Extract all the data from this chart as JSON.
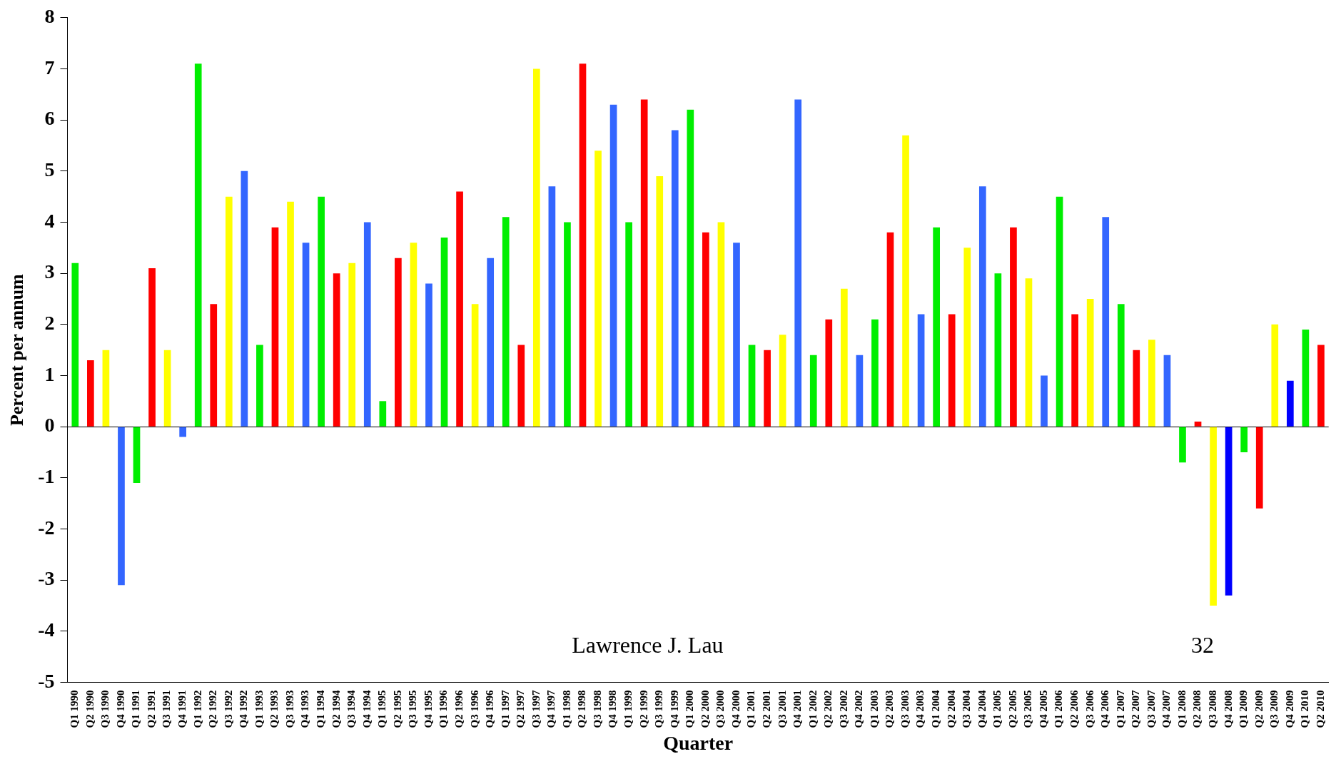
{
  "chart_data": {
    "type": "bar",
    "xlabel": "Quarter",
    "ylabel": "Percent per annum",
    "annotations": [
      "Lawrence J. Lau",
      "32"
    ],
    "categories": [
      "Q1 1990",
      "Q2 1990",
      "Q3 1990",
      "Q4 1990",
      "Q1 1991",
      "Q2 1991",
      "Q3 1991",
      "Q4 1991",
      "Q1 1992",
      "Q2 1992",
      "Q3 1992",
      "Q4 1992",
      "Q1 1993",
      "Q2 1993",
      "Q3 1993",
      "Q4 1993",
      "Q1 1994",
      "Q2 1994",
      "Q3 1994",
      "Q4 1994",
      "Q1 1995",
      "Q2 1995",
      "Q3 1995",
      "Q4 1995",
      "Q1 1996",
      "Q2 1996",
      "Q3 1996",
      "Q4 1996",
      "Q1 1997",
      "Q2 1997",
      "Q3 1997",
      "Q4 1997",
      "Q1 1998",
      "Q2 1998",
      "Q3 1998",
      "Q4 1998",
      "Q1 1999",
      "Q2 1999",
      "Q3 1999",
      "Q4 1999",
      "Q1 2000",
      "Q2 2000",
      "Q3 2000",
      "Q4 2000",
      "Q1 2001",
      "Q2 2001",
      "Q3 2001",
      "Q4 2001",
      "Q1 2002",
      "Q2 2002",
      "Q3 2002",
      "Q4 2002",
      "Q1 2003",
      "Q2 2003",
      "Q3 2003",
      "Q4 2003",
      "Q1 2004",
      "Q2 2004",
      "Q3 2004",
      "Q4 2004",
      "Q1 2005",
      "Q2 2005",
      "Q3 2005",
      "Q4 2005",
      "Q1 2006",
      "Q2 2006",
      "Q3 2006",
      "Q4 2006",
      "Q1 2007",
      "Q2 2007",
      "Q3 2007",
      "Q4 2007",
      "Q1 2008",
      "Q2 2008",
      "Q3 2008",
      "Q4 2008",
      "Q1 2009",
      "Q2 2009",
      "Q3 2009",
      "Q4 2009",
      "Q1 2010",
      "Q2 2010"
    ],
    "values": [
      3.2,
      1.3,
      1.5,
      -3.1,
      -1.1,
      3.1,
      1.5,
      -0.2,
      7.1,
      2.4,
      4.5,
      5.0,
      1.6,
      3.9,
      4.4,
      3.6,
      4.5,
      3.0,
      3.2,
      4.0,
      0.5,
      3.3,
      3.6,
      2.8,
      3.7,
      4.6,
      2.4,
      3.3,
      4.1,
      1.6,
      7.0,
      4.7,
      4.0,
      7.1,
      5.4,
      6.3,
      4.0,
      6.4,
      4.9,
      5.8,
      6.2,
      3.8,
      4.0,
      3.6,
      1.6,
      1.5,
      1.8,
      6.4,
      1.4,
      2.1,
      2.7,
      1.4,
      2.1,
      3.8,
      5.7,
      2.2,
      3.9,
      2.2,
      3.5,
      4.7,
      3.0,
      3.9,
      2.9,
      1.0,
      4.5,
      2.2,
      2.5,
      4.1,
      2.4,
      1.5,
      1.7,
      1.4,
      -0.7,
      0.1,
      -3.5,
      -3.3,
      -0.5,
      -1.6,
      2.0,
      0.9,
      1.9,
      1.6
    ],
    "colors": [
      "#00ee00",
      "#ff0000",
      "#ffff00",
      "#3366ff",
      "#00ee00",
      "#ff0000",
      "#ffff00",
      "#3366ff",
      "#00ee00",
      "#ff0000",
      "#ffff00",
      "#3366ff",
      "#00ee00",
      "#ff0000",
      "#ffff00",
      "#3366ff",
      "#00ee00",
      "#ff0000",
      "#ffff00",
      "#3366ff",
      "#00ee00",
      "#ff0000",
      "#ffff00",
      "#3366ff",
      "#00ee00",
      "#ff0000",
      "#ffff00",
      "#3366ff",
      "#00ee00",
      "#ff0000",
      "#ffff00",
      "#3366ff",
      "#00ee00",
      "#ff0000",
      "#ffff00",
      "#3366ff",
      "#00ee00",
      "#ff0000",
      "#ffff00",
      "#3366ff",
      "#00ee00",
      "#ff0000",
      "#ffff00",
      "#3366ff",
      "#00ee00",
      "#ff0000",
      "#ffff00",
      "#3366ff",
      "#00ee00",
      "#ff0000",
      "#ffff00",
      "#3366ff",
      "#00ee00",
      "#ff0000",
      "#ffff00",
      "#3366ff",
      "#00ee00",
      "#ff0000",
      "#ffff00",
      "#3366ff",
      "#00ee00",
      "#ff0000",
      "#ffff00",
      "#3366ff",
      "#00ee00",
      "#ff0000",
      "#ffff00",
      "#3366ff",
      "#00ee00",
      "#ff0000",
      "#ffff00",
      "#3366ff",
      "#00ee00",
      "#ff0000",
      "#ffff00",
      "#0000ff",
      "#00ee00",
      "#ff0000",
      "#ffff00",
      "#0000ff",
      "#00ee00",
      "#ff0000"
    ],
    "ylim": [
      -5,
      8
    ],
    "yticks": [
      -5,
      -4,
      -3,
      -2,
      -1,
      0,
      1,
      2,
      3,
      4,
      5,
      6,
      7,
      8
    ],
    "legend": false
  }
}
